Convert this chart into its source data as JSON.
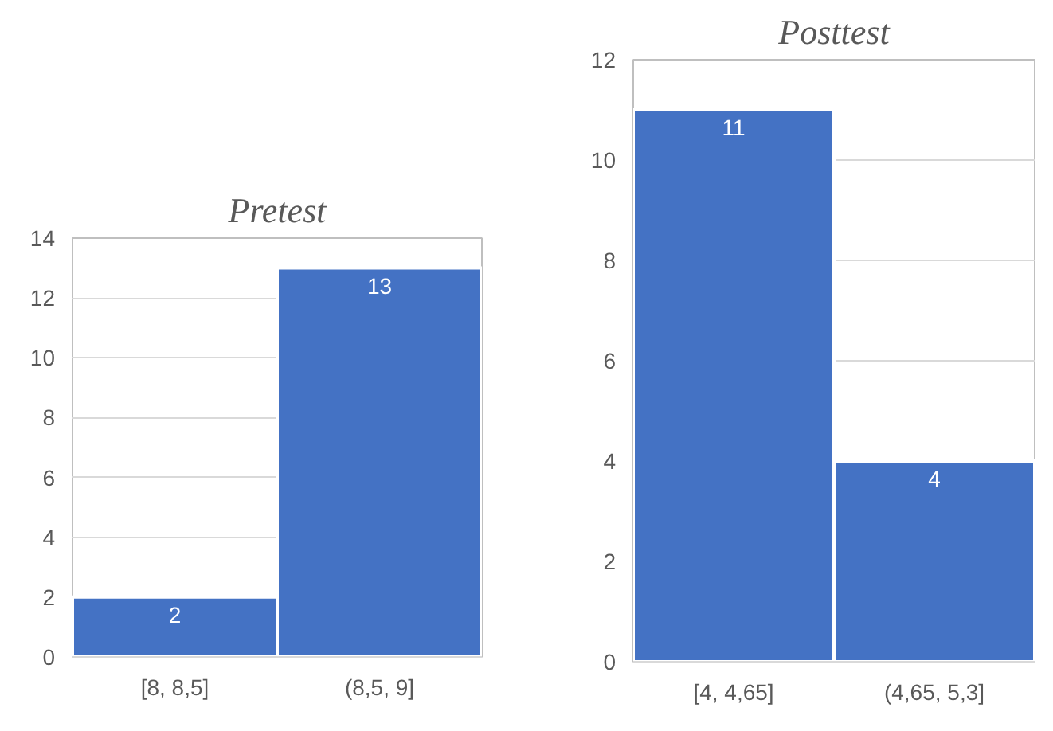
{
  "chart_data": [
    {
      "type": "bar",
      "title": "Pretest",
      "categories": [
        "[8, 8,5]",
        "(8,5, 9]"
      ],
      "values": [
        2,
        13
      ],
      "color": "#4472c4",
      "ylim": [
        0,
        14
      ],
      "yticks": [
        0,
        2,
        4,
        6,
        8,
        10,
        12,
        14
      ],
      "grid": "y",
      "data_labels": true
    },
    {
      "type": "bar",
      "title": "Posttest",
      "categories": [
        "[4, 4,65]",
        "(4,65, 5,3]"
      ],
      "values": [
        11,
        4
      ],
      "color": "#4472c4",
      "ylim": [
        0,
        12
      ],
      "yticks": [
        0,
        2,
        4,
        6,
        8,
        10,
        12
      ],
      "grid": "y",
      "data_labels": true
    }
  ]
}
